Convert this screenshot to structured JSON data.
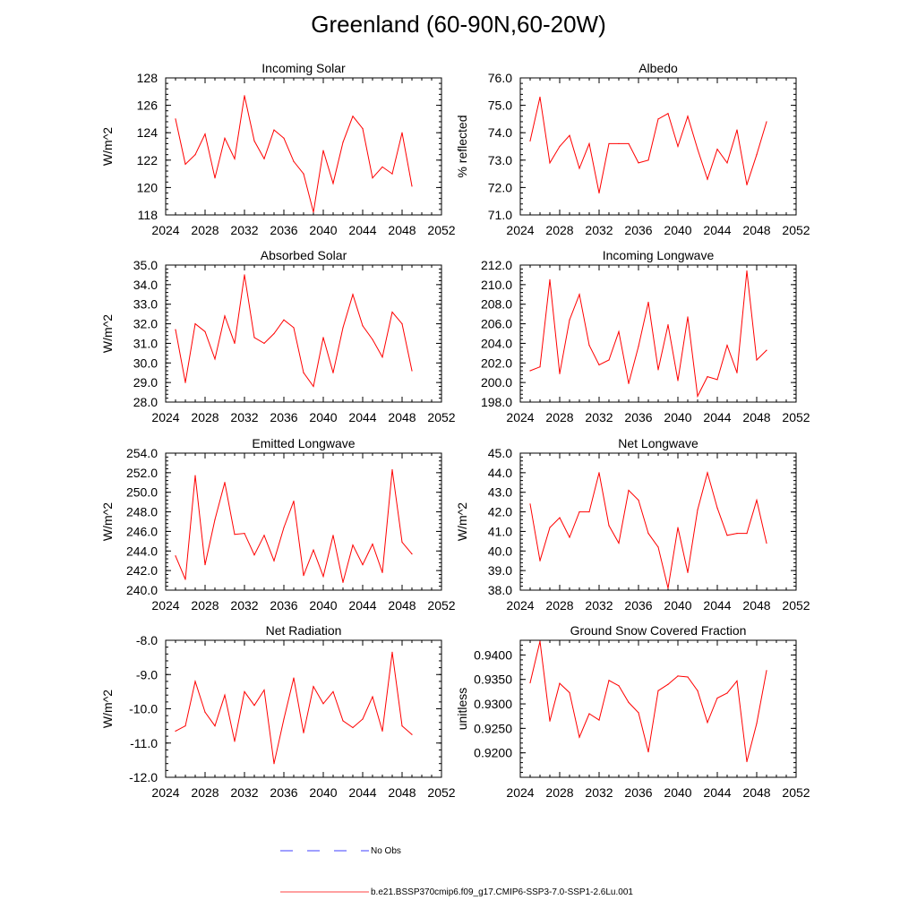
{
  "title": "Greenland (60-90N,60-20W)",
  "colors": {
    "model_line": "#ff0000",
    "obs_line": "#0000ff",
    "axis": "#000000"
  },
  "x_ticks": [
    "2024",
    "2028",
    "2032",
    "2036",
    "2040",
    "2044",
    "2048",
    "2052"
  ],
  "years": [
    2025,
    2026,
    2027,
    2028,
    2029,
    2030,
    2031,
    2032,
    2033,
    2034,
    2035,
    2036,
    2037,
    2038,
    2039,
    2040,
    2041,
    2042,
    2043,
    2044,
    2045,
    2046,
    2047,
    2048,
    2049
  ],
  "legend": {
    "obs_label": "No Obs",
    "model_label": "b.e21.BSSP370cmip6.f09_g17.CMIP6-SSP3-7.0-SSP1-2.6Lu.001"
  },
  "chart_data": [
    {
      "type": "line",
      "title": "Incoming Solar",
      "ylabel": "W/m^2",
      "xlim": [
        2024,
        2052
      ],
      "ylim": [
        118,
        128
      ],
      "yticks": [
        "118",
        "120",
        "122",
        "124",
        "126",
        "128"
      ],
      "x": [
        2025,
        2026,
        2027,
        2028,
        2029,
        2030,
        2031,
        2032,
        2033,
        2034,
        2035,
        2036,
        2037,
        2038,
        2039,
        2040,
        2041,
        2042,
        2043,
        2044,
        2045,
        2046,
        2047,
        2048,
        2049
      ],
      "values": [
        125.0,
        121.7,
        122.4,
        123.9,
        120.7,
        123.6,
        122.1,
        126.7,
        123.4,
        122.1,
        124.2,
        123.6,
        121.9,
        121.0,
        118.2,
        122.7,
        120.3,
        123.3,
        125.2,
        124.3,
        120.7,
        121.5,
        121.0,
        124.0,
        120.1
      ]
    },
    {
      "type": "line",
      "title": "Albedo",
      "ylabel": "% reflected",
      "xlim": [
        2024,
        2052
      ],
      "ylim": [
        71,
        76
      ],
      "yticks": [
        "71.0",
        "72.0",
        "73.0",
        "74.0",
        "75.0",
        "76.0"
      ],
      "x": [
        2025,
        2026,
        2027,
        2028,
        2029,
        2030,
        2031,
        2032,
        2033,
        2034,
        2035,
        2036,
        2037,
        2038,
        2039,
        2040,
        2041,
        2042,
        2043,
        2044,
        2045,
        2046,
        2047,
        2048,
        2049
      ],
      "values": [
        73.7,
        75.3,
        72.9,
        73.5,
        73.9,
        72.7,
        73.6,
        71.8,
        73.6,
        73.6,
        73.6,
        72.9,
        73.0,
        74.5,
        74.7,
        73.5,
        74.6,
        73.4,
        72.3,
        73.4,
        72.9,
        74.1,
        72.1,
        73.2,
        74.4
      ]
    },
    {
      "type": "line",
      "title": "Absorbed Solar",
      "ylabel": "W/m^2",
      "xlim": [
        2024,
        2052
      ],
      "ylim": [
        28,
        35
      ],
      "yticks": [
        "28.0",
        "29.0",
        "30.0",
        "31.0",
        "32.0",
        "33.0",
        "34.0",
        "35.0"
      ],
      "x": [
        2025,
        2026,
        2027,
        2028,
        2029,
        2030,
        2031,
        2032,
        2033,
        2034,
        2035,
        2036,
        2037,
        2038,
        2039,
        2040,
        2041,
        2042,
        2043,
        2044,
        2045,
        2046,
        2047,
        2048,
        2049
      ],
      "values": [
        31.7,
        29.0,
        32.0,
        31.6,
        30.2,
        32.4,
        31.0,
        34.5,
        31.3,
        31.0,
        31.5,
        32.2,
        31.8,
        29.5,
        28.8,
        31.3,
        29.5,
        31.8,
        33.5,
        31.9,
        31.2,
        30.3,
        32.6,
        32.0,
        29.6
      ]
    },
    {
      "type": "line",
      "title": "Incoming Longwave",
      "ylabel": "",
      "xlim": [
        2024,
        2052
      ],
      "ylim": [
        198,
        212
      ],
      "yticks": [
        "198.0",
        "200.0",
        "202.0",
        "204.0",
        "206.0",
        "208.0",
        "210.0",
        "212.0"
      ],
      "x": [
        2025,
        2026,
        2027,
        2028,
        2029,
        2030,
        2031,
        2032,
        2033,
        2034,
        2035,
        2036,
        2037,
        2038,
        2039,
        2040,
        2041,
        2042,
        2043,
        2044,
        2045,
        2046,
        2047,
        2048,
        2049
      ],
      "values": [
        201.2,
        201.6,
        210.5,
        200.9,
        206.4,
        209.0,
        203.8,
        201.8,
        202.3,
        205.2,
        199.9,
        203.7,
        208.2,
        201.3,
        205.9,
        200.2,
        206.7,
        198.6,
        200.6,
        200.3,
        203.8,
        201.0,
        211.4,
        202.3,
        203.3
      ]
    },
    {
      "type": "line",
      "title": "Emitted Longwave",
      "ylabel": "W/m^2",
      "xlim": [
        2024,
        2052
      ],
      "ylim": [
        240,
        254
      ],
      "yticks": [
        "240.0",
        "242.0",
        "244.0",
        "246.0",
        "248.0",
        "250.0",
        "252.0",
        "254.0"
      ],
      "x": [
        2025,
        2026,
        2027,
        2028,
        2029,
        2030,
        2031,
        2032,
        2033,
        2034,
        2035,
        2036,
        2037,
        2038,
        2039,
        2040,
        2041,
        2042,
        2043,
        2044,
        2045,
        2046,
        2047,
        2048,
        2049
      ],
      "values": [
        243.5,
        241.1,
        251.7,
        242.6,
        247.2,
        251.0,
        245.7,
        245.8,
        243.6,
        245.6,
        243.0,
        246.4,
        249.1,
        241.5,
        244.1,
        241.4,
        245.6,
        240.8,
        244.6,
        242.6,
        244.7,
        241.8,
        252.3,
        244.9,
        243.7
      ]
    },
    {
      "type": "line",
      "title": "Net Longwave",
      "ylabel": "W/m^2",
      "xlim": [
        2024,
        2052
      ],
      "ylim": [
        38,
        45
      ],
      "yticks": [
        "38.0",
        "39.0",
        "40.0",
        "41.0",
        "42.0",
        "43.0",
        "44.0",
        "45.0"
      ],
      "x": [
        2025,
        2026,
        2027,
        2028,
        2029,
        2030,
        2031,
        2032,
        2033,
        2034,
        2035,
        2036,
        2037,
        2038,
        2039,
        2040,
        2041,
        2042,
        2043,
        2044,
        2045,
        2046,
        2047,
        2048,
        2049
      ],
      "values": [
        42.4,
        39.5,
        41.2,
        41.7,
        40.7,
        42.0,
        42.0,
        44.0,
        41.3,
        40.4,
        43.1,
        42.6,
        40.9,
        40.2,
        38.1,
        41.2,
        38.9,
        42.1,
        44.0,
        42.2,
        40.8,
        40.9,
        40.9,
        42.6,
        40.4
      ]
    },
    {
      "type": "line",
      "title": "Net Radiation",
      "ylabel": "W/m^2",
      "xlim": [
        2024,
        2052
      ],
      "ylim": [
        -12,
        -8
      ],
      "yticks": [
        "-12.0",
        "-11.0",
        "-10.0",
        "-9.0",
        "-8.0"
      ],
      "x": [
        2025,
        2026,
        2027,
        2028,
        2029,
        2030,
        2031,
        2032,
        2033,
        2034,
        2035,
        2036,
        2037,
        2038,
        2039,
        2040,
        2041,
        2042,
        2043,
        2044,
        2045,
        2046,
        2047,
        2048,
        2049
      ],
      "values": [
        -10.65,
        -10.5,
        -9.2,
        -10.1,
        -10.5,
        -9.6,
        -10.95,
        -9.5,
        -9.9,
        -9.45,
        -11.6,
        -10.3,
        -9.1,
        -10.7,
        -9.35,
        -9.85,
        -9.5,
        -10.35,
        -10.55,
        -10.3,
        -9.65,
        -10.65,
        -8.35,
        -10.5,
        -10.75
      ]
    },
    {
      "type": "line",
      "title": "Ground Snow Covered Fraction",
      "ylabel": "unitless",
      "xlim": [
        2024,
        2052
      ],
      "ylim": [
        0.915,
        0.943
      ],
      "yticks": [
        "0.9200",
        "0.9250",
        "0.9300",
        "0.9350",
        "0.9400"
      ],
      "x": [
        2025,
        2026,
        2027,
        2028,
        2029,
        2030,
        2031,
        2032,
        2033,
        2034,
        2035,
        2036,
        2037,
        2038,
        2039,
        2040,
        2041,
        2042,
        2043,
        2044,
        2045,
        2046,
        2047,
        2048,
        2049
      ],
      "values": [
        0.9343,
        0.9428,
        0.9265,
        0.9342,
        0.9323,
        0.9232,
        0.928,
        0.9267,
        0.9348,
        0.9337,
        0.9303,
        0.9282,
        0.9202,
        0.9327,
        0.934,
        0.9357,
        0.9355,
        0.9327,
        0.9262,
        0.9312,
        0.9322,
        0.9347,
        0.9182,
        0.926,
        0.9368
      ]
    }
  ]
}
